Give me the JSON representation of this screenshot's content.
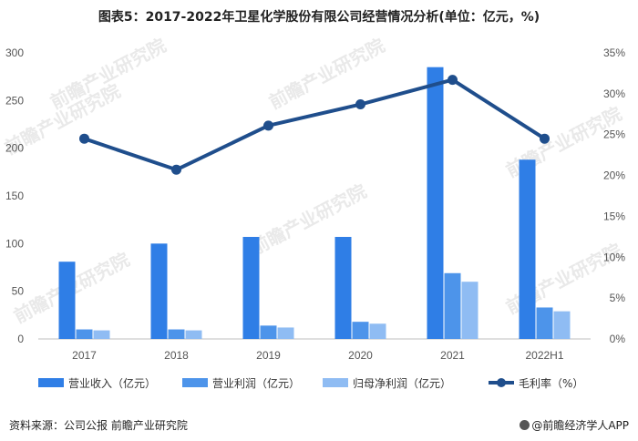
{
  "chart_data": {
    "type": "bar",
    "title": "图表5：2017-2022年卫星化学股份有限公司经营情况分析(单位：亿元，%)",
    "categories": [
      "2017",
      "2018",
      "2019",
      "2020",
      "2021",
      "2022H1"
    ],
    "series": [
      {
        "name": "营业收入（亿元）",
        "type": "bar",
        "axis": "left",
        "color": "#2f7ee6",
        "values": [
          81,
          100,
          107,
          107,
          285,
          188
        ]
      },
      {
        "name": "营业利润（亿元）",
        "type": "bar",
        "axis": "left",
        "color": "#4d94ea",
        "values": [
          10,
          10,
          14,
          18,
          69,
          33
        ]
      },
      {
        "name": "归母净利润（亿元）",
        "type": "bar",
        "axis": "left",
        "color": "#8fbcf3",
        "values": [
          9,
          9,
          12,
          16,
          60,
          29
        ]
      },
      {
        "name": "毛利率（%）",
        "type": "line",
        "axis": "right",
        "color": "#1f4e8c",
        "values": [
          24.5,
          20.7,
          26.1,
          28.7,
          31.7,
          24.5
        ]
      }
    ],
    "yleft": {
      "min": 0,
      "max": 300,
      "ticks": [
        "0",
        "50",
        "100",
        "150",
        "200",
        "250",
        "300"
      ]
    },
    "yright": {
      "min": 0,
      "max": 35,
      "ticks": [
        "0%",
        "5%",
        "10%",
        "15%",
        "20%",
        "25%",
        "30%",
        "35%"
      ]
    },
    "grid": false,
    "legend_position": "bottom"
  },
  "footer": {
    "source": "资料来源：公司公报 前瞻产业研究院",
    "brand": "@前瞻经济学人APP"
  },
  "watermark": {
    "text": "前瞻产业研究院"
  }
}
